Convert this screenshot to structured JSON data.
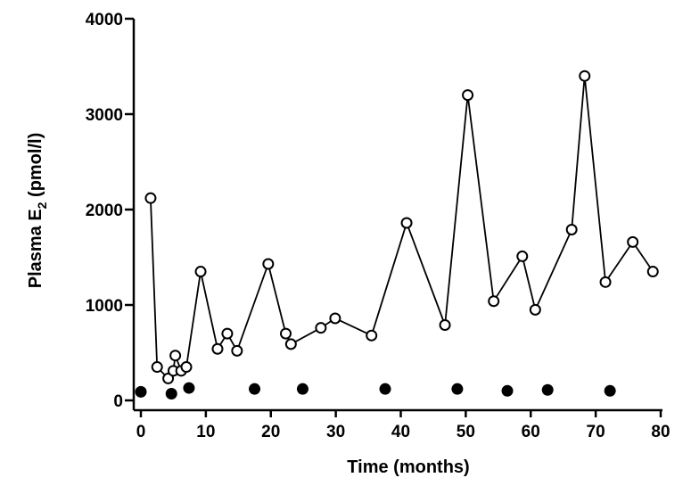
{
  "chart_data": {
    "type": "scatter",
    "xlabel": "Time (months)",
    "ylabel": {
      "main": "Plasma E",
      "subscript": "2",
      "unit": " (pmol/l)"
    },
    "xlim": [
      0,
      80
    ],
    "ylim": [
      0,
      4000
    ],
    "xticks": [
      0,
      10,
      20,
      30,
      40,
      50,
      60,
      70,
      80
    ],
    "yticks": [
      0,
      1000,
      2000,
      3000,
      4000
    ],
    "grid": false,
    "series": [
      {
        "name": "open circles (connected)",
        "marker": "open-circle",
        "connected": true,
        "x": [
          1.5,
          2.5,
          4.2,
          5.0,
          5.3,
          6.2,
          7.0,
          9.2,
          11.8,
          13.3,
          14.8,
          19.6,
          22.3,
          23.1,
          27.7,
          29.9,
          35.5,
          40.9,
          46.8,
          50.3,
          54.3,
          58.7,
          60.7,
          66.3,
          68.3,
          71.5,
          75.7,
          78.8
        ],
        "y": [
          2120,
          350,
          230,
          310,
          470,
          310,
          350,
          1350,
          540,
          700,
          520,
          1430,
          700,
          590,
          760,
          860,
          680,
          1860,
          790,
          3200,
          1040,
          1510,
          950,
          1790,
          3400,
          1240,
          1660,
          1350
        ]
      },
      {
        "name": "filled circles",
        "marker": "filled-circle",
        "connected": false,
        "x": [
          0,
          4.7,
          7.4,
          17.5,
          24.9,
          37.6,
          48.7,
          56.4,
          62.6,
          72.2
        ],
        "y": [
          90,
          70,
          130,
          120,
          120,
          120,
          120,
          100,
          110,
          100
        ]
      }
    ]
  }
}
